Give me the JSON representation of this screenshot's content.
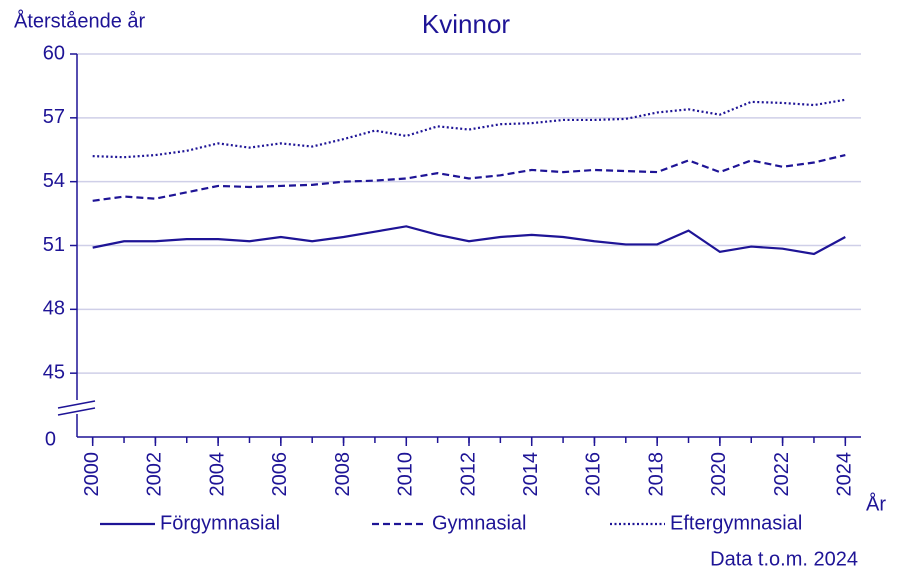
{
  "chart_data": {
    "type": "line",
    "title": "Kvinnor",
    "y_label": "Återstående år",
    "x_label": "År",
    "note": "Data t.o.m. 2024",
    "y_origin_label": "0",
    "x": [
      2000,
      2001,
      2002,
      2003,
      2004,
      2005,
      2006,
      2007,
      2008,
      2009,
      2010,
      2011,
      2012,
      2013,
      2014,
      2015,
      2016,
      2017,
      2018,
      2019,
      2020,
      2021,
      2022,
      2023,
      2024
    ],
    "xlim": [
      1999.5,
      2024.5
    ],
    "xticks": [
      2000,
      2002,
      2004,
      2006,
      2008,
      2010,
      2012,
      2014,
      2016,
      2018,
      2020,
      2022,
      2024
    ],
    "ylim": [
      42,
      60
    ],
    "yticks": [
      45,
      48,
      51,
      54,
      57,
      60
    ],
    "grid": true,
    "legend": "bottom",
    "series": [
      {
        "name": "Förgymnasial",
        "color": "#1e1496",
        "style": "solid",
        "values": [
          50.9,
          51.2,
          51.2,
          51.3,
          51.3,
          51.2,
          51.4,
          51.2,
          51.4,
          51.65,
          51.9,
          51.5,
          51.2,
          51.4,
          51.5,
          51.4,
          51.2,
          51.05,
          51.05,
          51.7,
          50.7,
          50.95,
          50.85,
          50.6,
          51.4
        ]
      },
      {
        "name": "Gymnasial",
        "color": "#1e1496",
        "style": "dashed",
        "values": [
          53.1,
          53.3,
          53.2,
          53.5,
          53.8,
          53.75,
          53.8,
          53.85,
          54.0,
          54.05,
          54.15,
          54.4,
          54.15,
          54.3,
          54.55,
          54.45,
          54.55,
          54.5,
          54.45,
          55.0,
          54.45,
          55.0,
          54.7,
          54.9,
          55.25
        ]
      },
      {
        "name": "Eftergymnasial",
        "color": "#1e1496",
        "style": "dotted",
        "values": [
          55.2,
          55.15,
          55.25,
          55.45,
          55.8,
          55.6,
          55.8,
          55.65,
          56.0,
          56.4,
          56.15,
          56.6,
          56.45,
          56.7,
          56.75,
          56.9,
          56.9,
          56.95,
          57.25,
          57.4,
          57.15,
          57.75,
          57.7,
          57.6,
          57.85
        ]
      }
    ]
  }
}
